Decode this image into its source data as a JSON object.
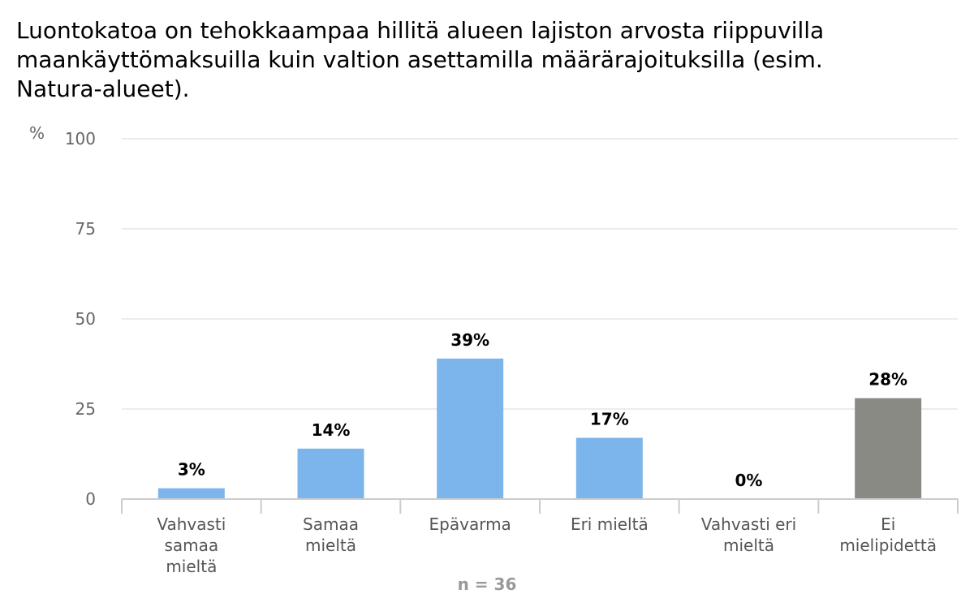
{
  "colors": {
    "bar_default": "#7cb5ec",
    "bar_no_opinion": "#8a8a85",
    "grid": "#d8d8d8",
    "axis": "#cccccc"
  },
  "chart_data": {
    "type": "bar",
    "title": "Luontokatoa on tehokkaampaa hillitä alueen lajiston arvosta riippuvilla maankäyttömaksuilla kuin valtion asettamilla määrärajoituksilla (esim. Natura-alueet).",
    "ylabel": "%",
    "xlabel": "",
    "ylim": [
      0,
      100
    ],
    "yticks": [
      0,
      25,
      50,
      75,
      100
    ],
    "grid": true,
    "categories": [
      "Vahvasti samaa mieltä",
      "Samaa mieltä",
      "Epävarma",
      "Eri mieltä",
      "Vahvasti eri mieltä",
      "Ei mielipidettä"
    ],
    "category_lines": [
      [
        "Vahvasti",
        "samaa",
        "mieltä"
      ],
      [
        "Samaa",
        "mieltä"
      ],
      [
        "Epävarma"
      ],
      [
        "Eri mieltä"
      ],
      [
        "Vahvasti eri",
        "mieltä"
      ],
      [
        "Ei",
        "mielipidettä"
      ]
    ],
    "values": [
      3,
      14,
      39,
      17,
      0,
      28
    ],
    "data_labels": [
      "3%",
      "14%",
      "39%",
      "17%",
      "0%",
      "28%"
    ],
    "bar_colors": [
      "#7cb5ec",
      "#7cb5ec",
      "#7cb5ec",
      "#7cb5ec",
      "#7cb5ec",
      "#8a8a85"
    ],
    "note": "n = 36"
  }
}
